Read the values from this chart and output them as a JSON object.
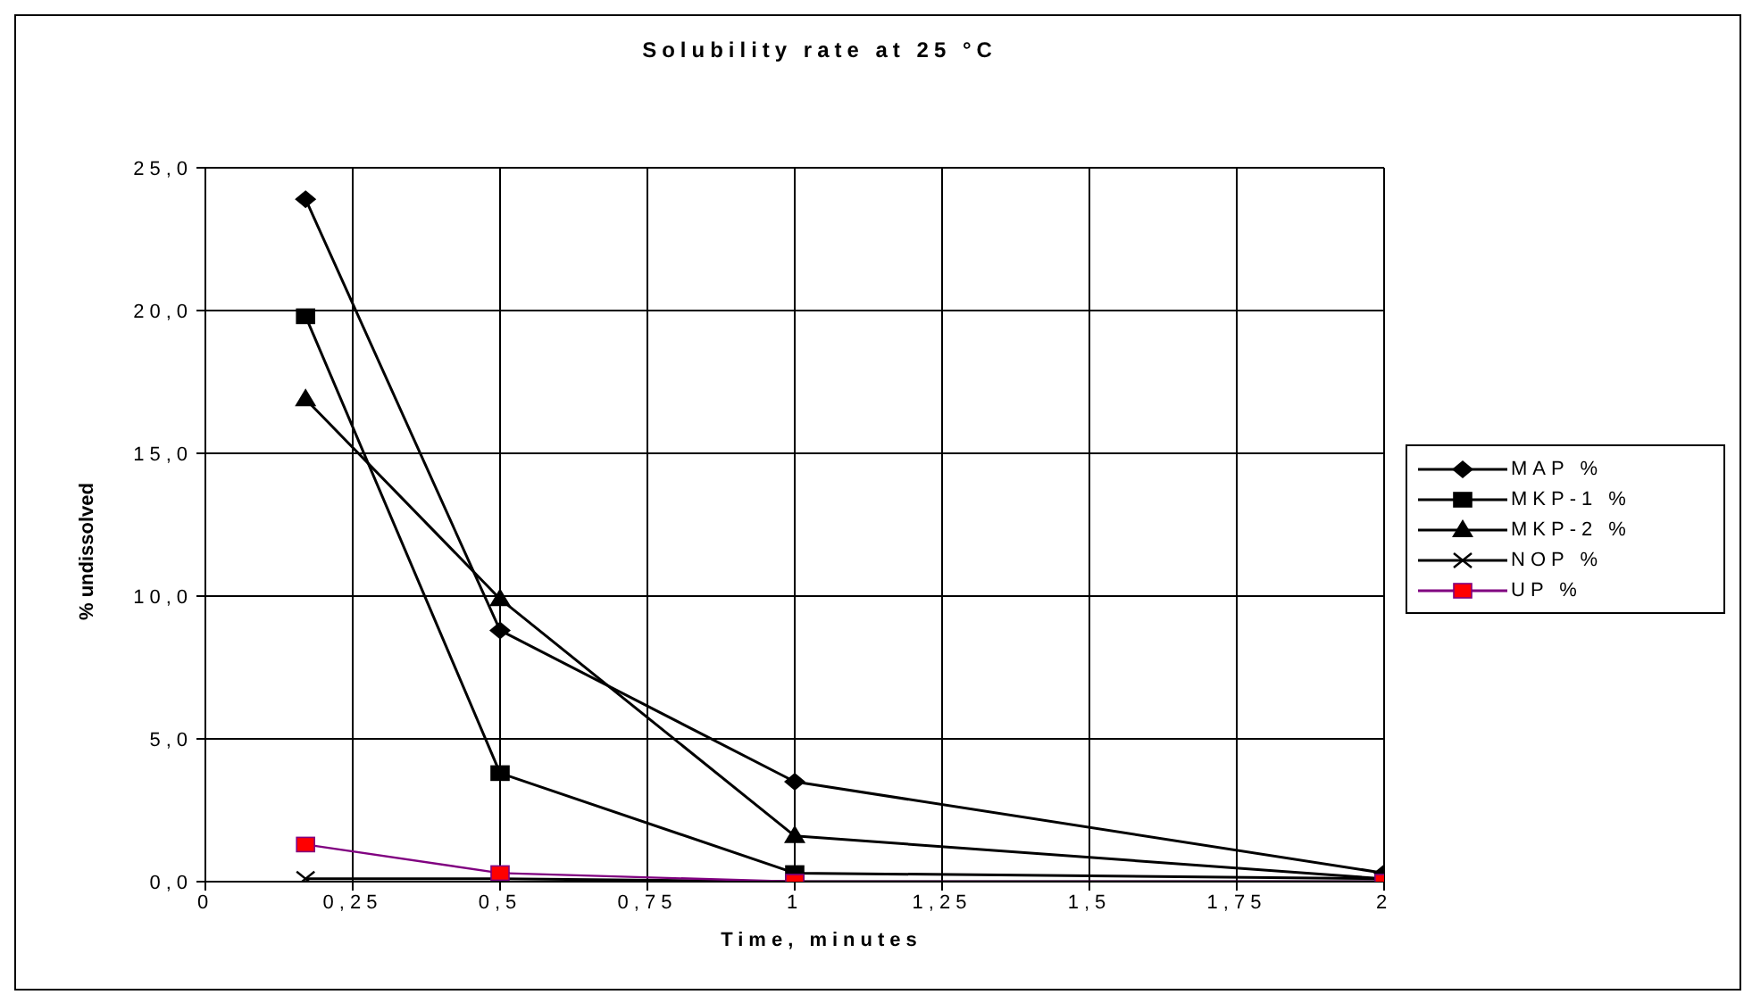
{
  "chart_data": {
    "type": "line",
    "title": "Solubility rate at 25 °C",
    "xlabel": "Time, minutes",
    "ylabel": "% undissolved",
    "x": [
      0.17,
      0.5,
      1,
      2
    ],
    "series": [
      {
        "name": "MAP %",
        "color": "#000000",
        "marker": "diamond",
        "values": [
          23.9,
          8.8,
          3.5,
          0.3
        ]
      },
      {
        "name": "MKP-1 %",
        "color": "#000000",
        "marker": "square",
        "values": [
          19.8,
          3.8,
          0.3,
          0.1
        ]
      },
      {
        "name": "MKP-2 %",
        "color": "#000000",
        "marker": "triangle",
        "values": [
          16.9,
          9.9,
          1.6,
          0.1
        ]
      },
      {
        "name": "NOP %",
        "color": "#000000",
        "marker": "cross",
        "values": [
          0.1,
          0.1,
          0,
          0
        ]
      },
      {
        "name": "UP %",
        "color": "#800080",
        "marker": "square",
        "colors": [
          "#ff0000",
          "#ff0000",
          "#ff0000",
          "#ff0000"
        ],
        "values": [
          1.3,
          0.3,
          0,
          0
        ]
      }
    ],
    "xlim": [
      0,
      2
    ],
    "xticks": [
      0,
      {
        "value": 0.25,
        "label": "0,25"
      },
      {
        "value": 0.5,
        "label": "0,5"
      },
      {
        "value": 0.75,
        "label": "0,75"
      },
      1,
      {
        "value": 1.25,
        "label": "1,25"
      },
      {
        "value": 1.5,
        "label": "1,5"
      },
      {
        "value": 1.75,
        "label": "1,75"
      },
      2
    ],
    "ylim": [
      0,
      25
    ],
    "yticks": [
      {
        "value": 0,
        "label": "0,0"
      },
      {
        "value": 5,
        "label": "5,0"
      },
      {
        "value": 10,
        "label": "10,0"
      },
      {
        "value": 15,
        "label": "15,0"
      },
      {
        "value": 20,
        "label": "20,0"
      },
      {
        "value": 25,
        "label": "25,0"
      }
    ],
    "grid": true,
    "legend": "right",
    "line_style": "solid"
  }
}
